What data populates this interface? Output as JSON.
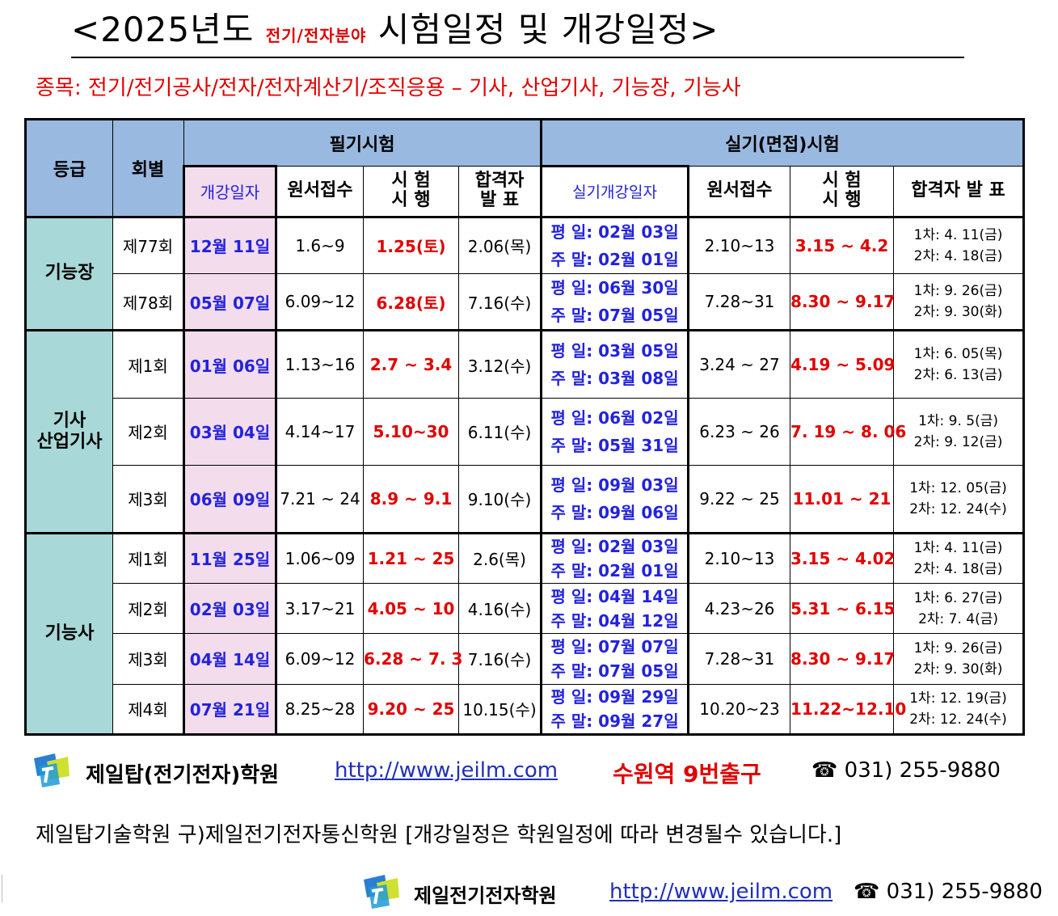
{
  "title": {
    "prefix": "<2025년도 ",
    "highlight": "전기/전자분야",
    "suffix": " 시험일정 및 개강일정>"
  },
  "subject_line": "종목: 전기/전기공사/전자/전자계산기/조직응용 – 기사, 산업기사, 기능장, 기능사",
  "table": {
    "h_grade": "등급",
    "h_round": "회별",
    "h_written": "필기시험",
    "h_practical": "실기(면접)시험",
    "h_lecture": "개강일자",
    "h_apply": "원서접수",
    "h_exam_1": "시  험",
    "h_exam_2": "시  행",
    "h_pass_1": "합격자",
    "h_pass_2": "발 표",
    "h_plecture": "실기개강일자",
    "h_papply": "원서접수",
    "h_pexam_1": "시  험",
    "h_pexam_2": "시  행",
    "h_presult": "합격자  발   표",
    "groups": [
      {
        "grade": "기능장",
        "rows": [
          {
            "round": "제77회",
            "lecture": "12월 11일",
            "apply": "1.6~9",
            "exam": "1.25(토)",
            "pass": "2.06(목)",
            "pl_weekday": "평 일:  02월 03일",
            "pl_weekend": "주 말:  02월 01일",
            "papply": "2.10~13",
            "pexam": "3.15 ~ 4.2",
            "r1": "1차: 4. 11(금)",
            "r2": "2차: 4. 18(금)"
          },
          {
            "round": "제78회",
            "lecture": "05월 07일",
            "apply": "6.09~12",
            "exam": "6.28(토)",
            "pass": "7.16(수)",
            "pl_weekday": "평 일:  06월 30일",
            "pl_weekend": "주 말:  07월 05일",
            "papply": "7.28~31",
            "pexam": "8.30 ~ 9.17",
            "r1": "1차: 9. 26(금)",
            "r2": "2차: 9. 30(화)"
          }
        ]
      },
      {
        "grade_1": "기사",
        "grade_2": "산업기사",
        "rows": [
          {
            "round": "제1회",
            "lecture": "01월 06일",
            "apply": "1.13~16",
            "exam": "2.7 ~ 3.4",
            "pass": "3.12(수)",
            "pl_weekday": "평 일:  03월 05일",
            "pl_weekend": "주 말:  03월 08일",
            "papply": "3.24 ~ 27",
            "pexam": "4.19 ~ 5.09",
            "r1": "1차: 6. 05(목)",
            "r2": "2차: 6. 13(금)"
          },
          {
            "round": "제2회",
            "lecture": "03월 04일",
            "apply": "4.14~17",
            "exam": "5.10~30",
            "pass": "6.11(수)",
            "pl_weekday": "평 일:  06월 02일",
            "pl_weekend": "주 말:  05월 31일",
            "papply": "6.23  ~  26",
            "pexam": "7. 19 ~ 8. 06",
            "r1": "1차: 9. 5(금)",
            "r2": "2차: 9. 12(금)"
          },
          {
            "round": "제3회",
            "lecture": "06월 09일",
            "apply": "7.21  ~  24",
            "exam": "8.9 ~ 9.1",
            "pass": "9.10(수)",
            "pl_weekday": "평 일:  09월 03일",
            "pl_weekend": "주 말:  09월 06일",
            "papply": "9.22  ~  25",
            "pexam": "11.01 ~ 21",
            "r1": "1차: 12. 05(금)",
            "r2": "2차: 12. 24(수)"
          }
        ]
      },
      {
        "grade": "기능사",
        "rows": [
          {
            "round": "제1회",
            "lecture": "11월 25일",
            "apply": "1.06~09",
            "exam": "1.21 ~ 25",
            "pass": "2.6(목)",
            "pl_weekday": "평 일:  02월 03일",
            "pl_weekend": "주 말:  02월 01일",
            "papply": "2.10~13",
            "pexam": "3.15 ~ 4.02",
            "r1": "1차:  4. 11(금)",
            "r2": "2차:  4. 18(금)"
          },
          {
            "round": "제2회",
            "lecture": "02월 03일",
            "apply": "3.17~21",
            "exam": "4.05 ~ 10",
            "pass": "4.16(수)",
            "pl_weekday": "평 일:  04월 14일",
            "pl_weekend": "주 말:  04월 12일",
            "papply": "4.23~26",
            "pexam": "5.31 ~ 6.15",
            "r1": "1차:  6. 27(금)",
            "r2": "2차:  7.  4(금)"
          },
          {
            "round": "제3회",
            "lecture": "04월 14일",
            "apply": "6.09~12",
            "exam": "6.28 ~ 7. 3",
            "pass": "7.16(수)",
            "pl_weekday": "평 일:  07월 07일",
            "pl_weekend": "주 말:  07월 05일",
            "papply": "7.28~31",
            "pexam": "8.30 ~ 9.17",
            "r1": "1차:  9. 26(금)",
            "r2": "2차:  9. 30(화)"
          },
          {
            "round": "제4회",
            "lecture": "07월 21일",
            "apply": "8.25~28",
            "exam": "9.20 ~ 25",
            "pass": "10.15(수)",
            "pl_weekday": "평 일:  09월 29일",
            "pl_weekend": "주 말:  09월 27일",
            "papply": "10.20~23",
            "pexam": "11.22~12.10",
            "r1": "1차:  12. 19(금)",
            "r2": "2차:  12. 24(수)"
          }
        ]
      }
    ]
  },
  "footer": {
    "academy": "제일탑(전기전자)학원",
    "url": "http://www.jeilm.com",
    "location": "수원역 9번출구",
    "phone": "☎ 031) 255-9880",
    "note": "제일탑기술학원 구)제일전기전자통신학원  [개강일정은 학원일정에 따라 변경될수 있습니다.]",
    "academy2": "제일전기전자학원",
    "url2": "http://www.jeilm.com",
    "phone2": "☎ 031) 255-9880"
  },
  "colors": {
    "header_blue": "#99b9e0",
    "grade_teal": "#a8d8d8",
    "lecture_pink": "#f3dcec",
    "accent_red": "#e00000",
    "accent_blue": "#2222dd"
  },
  "icons": [
    "academy-logo-icon",
    "phone-icon"
  ]
}
